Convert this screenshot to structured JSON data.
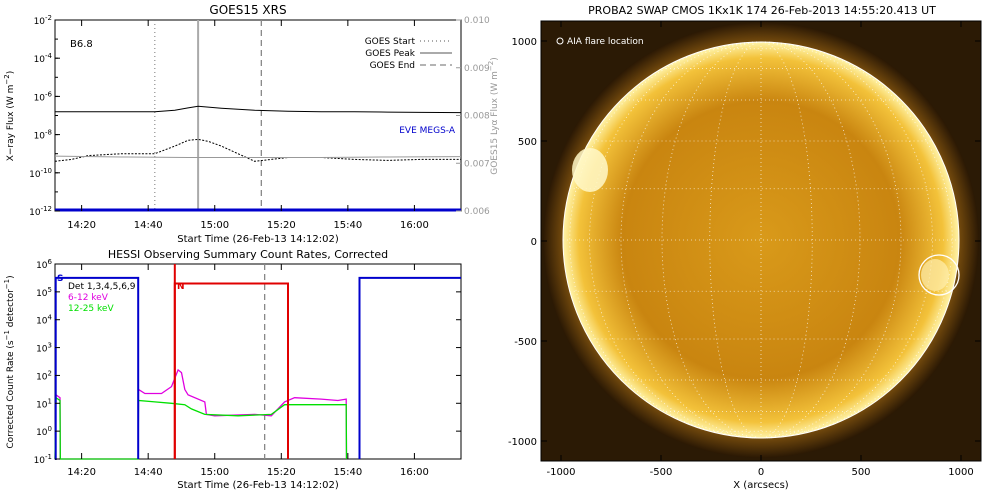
{
  "chart_data": [
    {
      "type": "line",
      "title": "GOES15 XRS",
      "xlabel": "Start Time (26-Feb-13 14:12:02)",
      "ylabel": "X-ray Flux (W m^-2)",
      "right_ylabel": "GOES15 Lyα Flux (W m^-2)",
      "corner_label": "B6.8",
      "x_ticks": [
        "14:20",
        "14:40",
        "15:00",
        "15:20",
        "15:40",
        "16:00"
      ],
      "x_tick_minutes": [
        8,
        28,
        48,
        68,
        88,
        108
      ],
      "xlim_minutes": [
        0,
        122
      ],
      "ylim_log": [
        -12,
        -2
      ],
      "y_ticks": [
        "10^-2",
        "10^-4",
        "10^-6",
        "10^-8",
        "10^-10",
        "10^-12"
      ],
      "right_ylim": [
        0.006,
        0.01
      ],
      "right_ticks": [
        "0.010",
        "0.009",
        "0.008",
        "0.007",
        "0.006"
      ],
      "legend": [
        "GOES Start",
        "GOES Peak",
        "GOES End"
      ],
      "markers_minutes": {
        "start": 30,
        "peak": 43,
        "end": 62
      },
      "eve_label": "EVE MEGS-A",
      "series": [
        {
          "key": "long",
          "color": "#000000",
          "x_minutes": [
            0,
            10,
            20,
            30,
            36,
            40,
            43,
            50,
            60,
            70,
            80,
            90,
            100,
            110,
            122
          ],
          "values": [
            -6.8,
            -6.8,
            -6.8,
            -6.8,
            -6.72,
            -6.6,
            -6.52,
            -6.62,
            -6.72,
            -6.78,
            -6.8,
            -6.8,
            -6.82,
            -6.84,
            -6.85
          ]
        },
        {
          "key": "short",
          "color": "#000000",
          "x_minutes": [
            0,
            5,
            10,
            20,
            30,
            36,
            40,
            43,
            46,
            50,
            55,
            60,
            65,
            70,
            80,
            90,
            100,
            110,
            122
          ],
          "values": [
            -9.4,
            -9.3,
            -9.1,
            -9.0,
            -9.0,
            -8.6,
            -8.3,
            -8.25,
            -8.35,
            -8.6,
            -9.0,
            -9.4,
            -9.3,
            -9.2,
            -9.2,
            -9.3,
            -9.35,
            -9.3,
            -9.3
          ]
        },
        {
          "key": "lya",
          "color": "#999999",
          "x_minutes": [
            0,
            20,
            40,
            60,
            80,
            100,
            122
          ],
          "values_right": [
            0.00715,
            0.00713,
            0.00712,
            0.00712,
            0.00712,
            0.00713,
            0.00714
          ]
        },
        {
          "key": "eve",
          "color": "#0000cc",
          "x_minutes": [
            0,
            122
          ],
          "values": [
            -11.95,
            -11.95
          ]
        }
      ]
    },
    {
      "type": "line",
      "title": "HESSI Observing Summary Count Rates, Corrected",
      "xlabel": "Start Time (26-Feb-13 14:12:02)",
      "ylabel": "Corrected Count Rate (s^-1 detector^-1)",
      "x_ticks": [
        "14:20",
        "14:40",
        "15:00",
        "15:20",
        "15:40",
        "16:00"
      ],
      "x_tick_minutes": [
        8,
        28,
        48,
        68,
        88,
        108
      ],
      "xlim_minutes": [
        0,
        122
      ],
      "ylim_log": [
        -1,
        6
      ],
      "y_ticks": [
        "10^6",
        "10^5",
        "10^4",
        "10^3",
        "10^2",
        "10^1",
        "10^0",
        "10^-1"
      ],
      "legend": [
        {
          "label": "Det 1,3,4,5,6,9",
          "color": "#000000"
        },
        {
          "label": "6-12 keV",
          "color": "#e000e0"
        },
        {
          "label": "12-25 keV",
          "color": "#00e000"
        }
      ],
      "flag_s": "S",
      "flag_n": "N",
      "series": [
        {
          "name": "6-12 keV",
          "color": "#e000e0",
          "x_minutes": [
            0,
            0.3,
            1.5,
            1.6,
            25,
            25.1,
            27,
            32,
            35,
            36,
            37,
            38,
            39,
            40,
            45,
            45.5,
            48,
            60,
            65,
            69,
            72,
            80,
            85,
            87.5,
            87.6
          ],
          "values": [
            -1,
            1.3,
            1.2,
            -1,
            -1,
            1.5,
            1.35,
            1.35,
            1.6,
            1.9,
            2.2,
            2.1,
            1.5,
            1.3,
            1.05,
            0.6,
            0.55,
            0.6,
            0.55,
            1.05,
            1.2,
            1.15,
            1.1,
            1.15,
            -1
          ]
        },
        {
          "name": "12-25 keV",
          "color": "#00e000",
          "x_minutes": [
            0,
            0.3,
            1.5,
            1.6,
            25,
            25.1,
            30,
            35,
            39,
            41,
            45,
            55,
            65,
            69,
            75,
            85,
            87.5,
            87.6
          ],
          "values": [
            -1,
            1.2,
            1.1,
            -1,
            -1,
            1.1,
            1.05,
            1.0,
            0.95,
            0.8,
            0.6,
            0.55,
            0.6,
            0.95,
            0.95,
            0.95,
            0.95,
            -1
          ]
        },
        {
          "name": "S",
          "color": "#0000cc",
          "x_minutes": [
            0,
            0.2,
            0.2,
            25,
            25
          ],
          "values": [
            -1,
            -1,
            5.5,
            5.5,
            -1
          ]
        },
        {
          "name": "S2",
          "color": "#0000cc",
          "x_minutes": [
            91.5,
            91.5,
            122
          ],
          "values": [
            -1,
            5.5,
            5.5
          ]
        },
        {
          "name": "N",
          "color": "#e00000",
          "x_minutes": [
            36,
            36,
            70,
            70
          ],
          "values": [
            -1,
            5.3,
            5.3,
            -1
          ]
        }
      ],
      "markers_minutes": {
        "start_blue": 25,
        "end_blue": 91.5,
        "dashed_gray": 63,
        "dashed_red": 70,
        "solid_red": 36
      }
    },
    {
      "type": "image",
      "title": "PROBA2 SWAP CMOS 1Kx1K 174 26-Feb-2013 14:55:20.413 UT",
      "xlabel": "X (arcsecs)",
      "ylabel": "",
      "x_ticks": [
        "-1000",
        "-500",
        "0",
        "500",
        "1000"
      ],
      "y_ticks": [
        "1000",
        "500",
        "0",
        "-500",
        "-1000"
      ],
      "xlim": [
        -1100,
        1100
      ],
      "ylim": [
        -1100,
        1100
      ],
      "annotation": "AIA flare location",
      "flare_location": {
        "x": 890,
        "y": -170
      }
    }
  ]
}
